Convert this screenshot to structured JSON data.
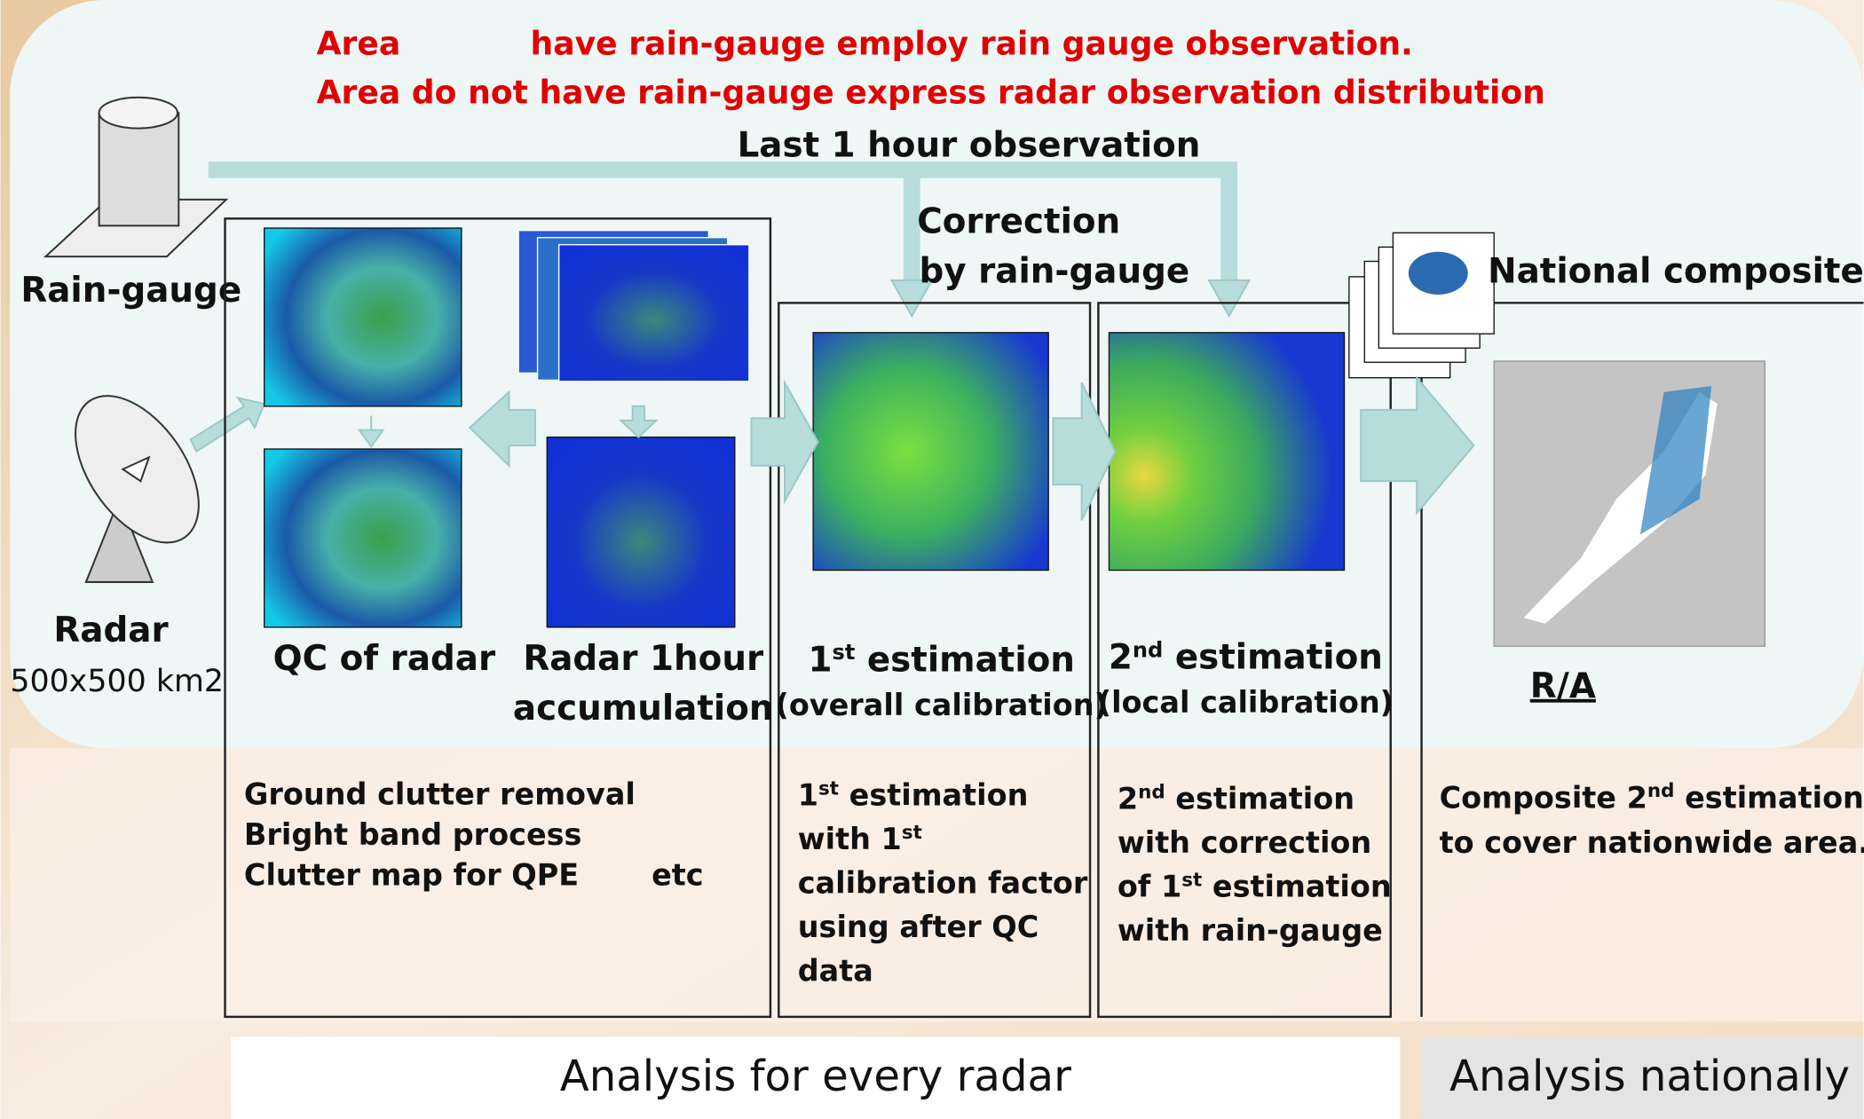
{
  "notes": {
    "line1_a": "Area",
    "line1_b": "have rain-gauge employ rain gauge observation.",
    "line2": "Area do not have rain-gauge express radar observation distribution"
  },
  "top_label": "Last 1 hour observation",
  "correction": [
    "Correction",
    "by rain-gauge"
  ],
  "rain_gauge": "Rain-gauge",
  "radar": "Radar",
  "radar_range": "500x500 km2",
  "national_composite": "National composite",
  "steps": {
    "qc": "QC of radar",
    "accum": [
      "Radar 1hour",
      "accumulation"
    ],
    "first": {
      "pre": "1",
      "sup": "st",
      "post": " estimation",
      "sub": "(overall calibration)"
    },
    "second": {
      "pre": "2",
      "sup": "nd",
      "post": " estimation",
      "sub": "(local calibration)"
    },
    "ra": "R/A"
  },
  "descriptions": {
    "qc": [
      "Ground clutter removal",
      "Bright band process",
      "Clutter map for QPE"
    ],
    "qc_etc": "etc",
    "first": [
      {
        "pre": "1",
        "sup": "st",
        "post": " estimation"
      },
      {
        "pre": "with 1",
        "sup": "st",
        "post": ""
      },
      "calibration factor",
      "using after QC",
      "data"
    ],
    "second": [
      {
        "pre": "2",
        "sup": "nd",
        "post": " estimation"
      },
      "with correction",
      {
        "pre": "of 1",
        "sup": "st",
        "post": " estimation"
      },
      "with rain-gauge"
    ],
    "national": [
      {
        "pre": "Composite 2",
        "sup": "nd",
        "post": " estimation"
      },
      "to cover nationwide area."
    ]
  },
  "footer": {
    "left": "Analysis for every radar",
    "right": "Analysis nationally"
  }
}
